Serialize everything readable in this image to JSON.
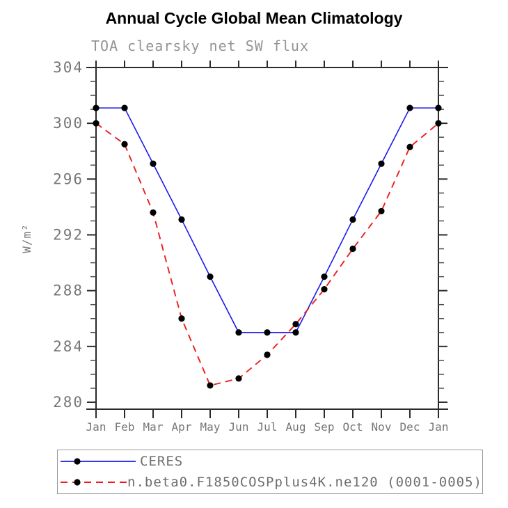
{
  "colors": {
    "frame": "#2b2b2b",
    "minor_tick": "#4a4a4a",
    "tick_label": "#767676",
    "subtitle_text": "#949494",
    "title_text": "#000000",
    "legend_text": "#6e6e6e",
    "legend_border": "#999999",
    "marker": "#000000",
    "ceres_line": "#1a1aee",
    "model_line": "#ee1c1c"
  },
  "chart_data": {
    "type": "line",
    "title": "Annual Cycle Global Mean Climatology",
    "subtitle": "TOA clearsky net SW flux",
    "ylabel": "W/m²",
    "xlabel": "",
    "categories": [
      "Jan",
      "Feb",
      "Mar",
      "Apr",
      "May",
      "Jun",
      "Jul",
      "Aug",
      "Sep",
      "Oct",
      "Nov",
      "Dec",
      "Jan"
    ],
    "ylim": [
      279.5,
      304
    ],
    "ytick_major_step": 4,
    "ytick_minor_step": 1,
    "ytick_major_labels": [
      "280",
      "284",
      "288",
      "292",
      "296",
      "300",
      "304"
    ],
    "grid": false,
    "legend_position": "bottom-left-box",
    "series": [
      {
        "name": "CERES",
        "color": "#1a1aee",
        "line_style": "solid",
        "marker": "filled-circle",
        "values": [
          301.1,
          301.1,
          297.1,
          293.1,
          289.0,
          285.0,
          285.0,
          285.0,
          289.0,
          293.1,
          297.1,
          301.1,
          301.1
        ]
      },
      {
        "name": "n.beta0.F1850COSPplus4K.ne120 (0001-0005)",
        "color": "#ee1c1c",
        "line_style": "dashed",
        "marker": "filled-circle",
        "values": [
          300.0,
          298.5,
          293.6,
          286.0,
          281.2,
          281.7,
          283.4,
          285.6,
          288.1,
          291.0,
          293.7,
          298.3,
          300.0
        ]
      }
    ]
  }
}
